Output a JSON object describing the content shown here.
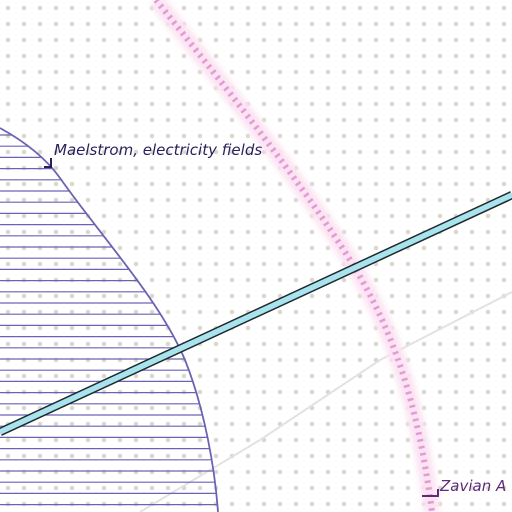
{
  "map": {
    "background_color": "#ffffff",
    "dot_color": "#d9d9cf",
    "labels": {
      "region": "Maelstrom, electricity fields",
      "border": "Zavian A"
    },
    "colors": {
      "region_stroke": "#6a63b5",
      "region_hatch": "#6a63b5",
      "road_fill": "#a9e4ee",
      "road_casing": "#1e2a2e",
      "border_dash": "#e59ad6",
      "border_glow": "#fbe3f2",
      "minor_road": "#e2e2e2",
      "region_label": "#2b1d5c",
      "border_label": "#5e2a7a"
    }
  }
}
